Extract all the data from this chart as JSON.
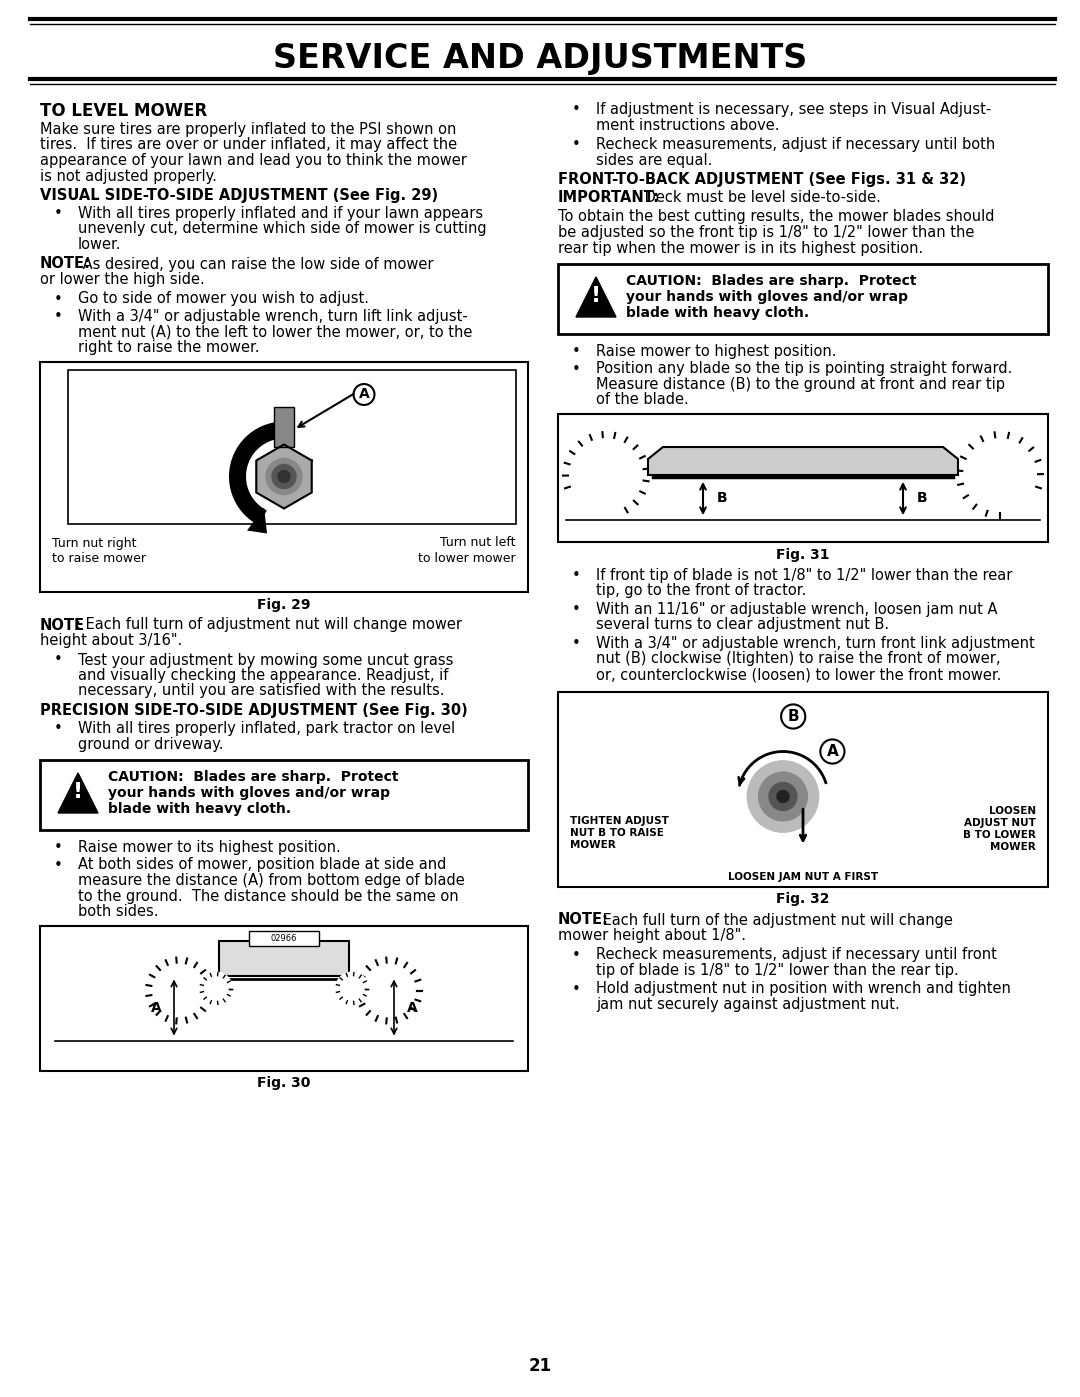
{
  "title": "SERVICE AND ADJUSTMENTS",
  "page_number": "21",
  "bg_color": "#ffffff",
  "left_col": {
    "section_title": "TO LEVEL MOWER",
    "intro_lines": [
      "Make sure tires are properly inflated to the PSI shown on",
      "tires.  If tires are over or under inflated, it may affect the",
      "appearance of your lawn and lead you to think the mower",
      "is not adjusted properly."
    ],
    "visual_heading": "VISUAL SIDE-TO-SIDE ADJUSTMENT (See Fig. 29)",
    "visual_bullet": [
      "With all tires properly inflated and if your lawn appears",
      "unevenly cut, determine which side of mower is cutting",
      "lower."
    ],
    "note1_bold": "NOTE:",
    "note1_rest": " As desired, you can raise the low side of mower",
    "note1_line2": "or lower the high side.",
    "bullet_go": "Go to side of mower you wish to adjust.",
    "bullet_wrench_lines": [
      "With a 3/4\" or adjustable wrench, turn lift link adjust-",
      "ment nut (A) to the left to lower the mower, or, to the",
      "right to raise the mower."
    ],
    "fig29_label_a": "A",
    "fig29_turn_right": "Turn nut right",
    "fig29_turn_right2": "to raise mower",
    "fig29_turn_left": "Turn nut left",
    "fig29_turn_left2": "to lower mower",
    "fig29_caption": "Fig. 29",
    "note2_bold": "NOTE",
    "note2_rest": ": Each full turn of adjustment nut will change mower",
    "note2_line2": "height about 3/16\".",
    "test_bullet_lines": [
      "Test your adjustment by mowing some uncut grass",
      "and visually checking the appearance. Readjust, if",
      "necessary, until you are satisfied with the results."
    ],
    "precision_heading": "PRECISION SIDE-TO-SIDE ADJUSTMENT (See Fig. 30)",
    "park_bullet_lines": [
      "With all tires properly inflated, park tractor on level",
      "ground or driveway."
    ],
    "caution1_line1": "CAUTION:  Blades are sharp.  Protect",
    "caution1_line2": "your hands with gloves and/or wrap",
    "caution1_line3": "blade with heavy cloth.",
    "raise_bullet": "Raise mower to its highest position.",
    "measure_bullet_lines": [
      "At both sides of mower, position blade at side and",
      "measure the distance (A) from bottom edge of blade",
      "to the ground.  The distance should be the same on",
      "both sides."
    ],
    "fig30_label_a": "A",
    "fig30_caption": "Fig. 30"
  },
  "right_col": {
    "bullet1_lines": [
      "If adjustment is necessary, see steps in Visual Adjust-",
      "ment instructions above."
    ],
    "bullet2_lines": [
      "Recheck measurements, adjust if necessary until both",
      "sides are equal."
    ],
    "ftb_heading": "FRONT-TO-BACK ADJUSTMENT (See Figs. 31 & 32)",
    "important_bold": "IMPORTANT:",
    "important_rest": " Deck must be level side-to-side.",
    "para1_lines": [
      "To obtain the best cutting results, the mower blades should",
      "be adjusted so the front tip is 1/8\" to 1/2\" lower than the",
      "rear tip when the mower is in its highest position."
    ],
    "caution2_line1": "CAUTION:  Blades are sharp.  Protect",
    "caution2_line2": "your hands with gloves and/or wrap",
    "caution2_line3": "blade with heavy cloth.",
    "raise2_bullet": "Raise mower to highest position.",
    "pos_bullet_lines": [
      "Position any blade so the tip is pointing straight forward.",
      "Measure distance (B) to the ground at front and rear tip",
      "of the blade."
    ],
    "fig31_label_b": "B",
    "fig31_caption": "Fig. 31",
    "fig31_b1_lines": [
      "If front tip of blade is not 1/8\" to 1/2\" lower than the rear",
      "tip, go to the front of tractor."
    ],
    "fig31_b2_lines": [
      "With an 11/16\" or adjustable wrench, loosen jam nut A",
      "several turns to clear adjustment nut B."
    ],
    "fig31_b3_lines": [
      "With a 3/4\" or adjustable wrench, turn front link adjustment",
      "nut (B) clockwise (ltighten) to raise the front of mower,",
      "or, counterclockwise (loosen) to lower the front mower."
    ],
    "fig32_label_b": "B",
    "fig32_label_a": "A",
    "fig32_tighten1": "TIGHTEN ADJUST",
    "fig32_tighten2": "NUT B TO RAISE",
    "fig32_tighten3": "MOWER",
    "fig32_loosen1": "LOOSEN",
    "fig32_loosen2": "ADJUST NUT",
    "fig32_loosen3": "B TO LOWER",
    "fig32_loosen4": "MOWER",
    "fig32_jam": "LOOSEN JAM NUT A FIRST",
    "fig32_caption": "Fig. 32",
    "note3_bold": "NOTE:",
    "note3_rest": " Each full turn of the adjustment nut will change",
    "note3_line2": "mower height about 1/8\".",
    "final_b1_lines": [
      "Recheck measurements, adjust if necessary until front",
      "tip of blade is 1/8\" to 1/2\" lower than the rear tip."
    ],
    "final_b2_lines": [
      "Hold adjustment nut in position with wrench and tighten",
      "jam nut securely against adjustment nut."
    ]
  }
}
